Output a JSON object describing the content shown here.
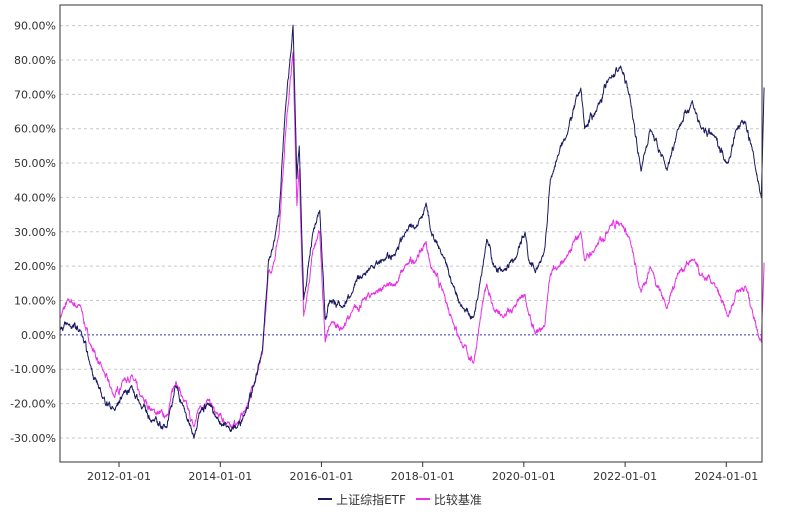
{
  "chart_data": {
    "type": "line",
    "title": "",
    "xlabel": "",
    "ylabel": "",
    "x_ticks": [
      "2012-01-01",
      "2014-01-01",
      "2016-01-01",
      "2018-01-01",
      "2020-01-01",
      "2022-01-01",
      "2024-01-01"
    ],
    "x_range": [
      "2010-11-01",
      "2024-09-15"
    ],
    "y_ticks": [
      "-30.00%",
      "-20.00%",
      "-10.00%",
      "0.00%",
      "10.00%",
      "20.00%",
      "30.00%",
      "40.00%",
      "50.00%",
      "60.00%",
      "70.00%",
      "80.00%",
      "90.00%"
    ],
    "ylim": [
      -37,
      96
    ],
    "grid": true,
    "zero_line": true,
    "legend_position": "bottom-center",
    "series": [
      {
        "name": "上证综指ETF",
        "color": "#1a1a5e",
        "points": [
          [
            "2010-11-01",
            2
          ],
          [
            "2011-01-01",
            3
          ],
          [
            "2011-04-01",
            1
          ],
          [
            "2011-06-01",
            -8
          ],
          [
            "2011-09-01",
            -18
          ],
          [
            "2011-12-01",
            -22
          ],
          [
            "2012-02-01",
            -17
          ],
          [
            "2012-04-01",
            -15
          ],
          [
            "2012-06-01",
            -20
          ],
          [
            "2012-09-01",
            -25
          ],
          [
            "2012-12-01",
            -27
          ],
          [
            "2013-01-01",
            -22
          ],
          [
            "2013-02-15",
            -15
          ],
          [
            "2013-04-01",
            -20
          ],
          [
            "2013-06-25",
            -30
          ],
          [
            "2013-08-01",
            -22
          ],
          [
            "2013-10-01",
            -20
          ],
          [
            "2013-12-01",
            -24
          ],
          [
            "2014-03-01",
            -27
          ],
          [
            "2014-05-01",
            -27
          ],
          [
            "2014-07-01",
            -22
          ],
          [
            "2014-09-01",
            -15
          ],
          [
            "2014-11-01",
            -5
          ],
          [
            "2014-12-15",
            22
          ],
          [
            "2015-01-15",
            25
          ],
          [
            "2015-03-01",
            35
          ],
          [
            "2015-04-15",
            65
          ],
          [
            "2015-06-10",
            90
          ],
          [
            "2015-07-08",
            45
          ],
          [
            "2015-07-25",
            55
          ],
          [
            "2015-08-26",
            10
          ],
          [
            "2015-09-15",
            15
          ],
          [
            "2015-11-01",
            30
          ],
          [
            "2015-12-20",
            36
          ],
          [
            "2016-01-28",
            5
          ],
          [
            "2016-03-01",
            10
          ],
          [
            "2016-06-01",
            8
          ],
          [
            "2016-08-01",
            12
          ],
          [
            "2016-11-01",
            18
          ],
          [
            "2017-01-01",
            20
          ],
          [
            "2017-04-01",
            22
          ],
          [
            "2017-06-01",
            23
          ],
          [
            "2017-09-01",
            30
          ],
          [
            "2017-11-15",
            32
          ],
          [
            "2018-01-25",
            38
          ],
          [
            "2018-03-01",
            30
          ],
          [
            "2018-06-01",
            22
          ],
          [
            "2018-08-01",
            15
          ],
          [
            "2018-10-15",
            8
          ],
          [
            "2019-01-03",
            5
          ],
          [
            "2019-02-15",
            15
          ],
          [
            "2019-04-08",
            28
          ],
          [
            "2019-06-01",
            20
          ],
          [
            "2019-08-01",
            18
          ],
          [
            "2019-11-01",
            22
          ],
          [
            "2020-01-10",
            30
          ],
          [
            "2020-02-03",
            22
          ],
          [
            "2020-03-23",
            18
          ],
          [
            "2020-06-01",
            25
          ],
          [
            "2020-07-10",
            45
          ],
          [
            "2020-09-01",
            52
          ],
          [
            "2020-11-01",
            58
          ],
          [
            "2021-02-15",
            72
          ],
          [
            "2021-03-15",
            60
          ],
          [
            "2021-06-01",
            65
          ],
          [
            "2021-09-15",
            75
          ],
          [
            "2021-12-01",
            78
          ],
          [
            "2022-02-01",
            70
          ],
          [
            "2022-04-26",
            48
          ],
          [
            "2022-07-01",
            60
          ],
          [
            "2022-10-31",
            48
          ],
          [
            "2023-01-15",
            60
          ],
          [
            "2023-05-01",
            68
          ],
          [
            "2023-07-01",
            60
          ],
          [
            "2023-10-01",
            58
          ],
          [
            "2024-01-15",
            50
          ],
          [
            "2024-03-15",
            60
          ],
          [
            "2024-05-20",
            62
          ],
          [
            "2024-07-01",
            55
          ],
          [
            "2024-09-10",
            40
          ],
          [
            "2024-09-30",
            72
          ]
        ]
      },
      {
        "name": "比较基准",
        "color": "#e632e6",
        "points": [
          [
            "2010-11-01",
            5
          ],
          [
            "2011-01-01",
            10
          ],
          [
            "2011-04-01",
            8
          ],
          [
            "2011-06-01",
            -2
          ],
          [
            "2011-09-01",
            -10
          ],
          [
            "2011-12-01",
            -18
          ],
          [
            "2012-02-01",
            -13
          ],
          [
            "2012-04-01",
            -12
          ],
          [
            "2012-06-01",
            -18
          ],
          [
            "2012-09-01",
            -22
          ],
          [
            "2012-12-01",
            -24
          ],
          [
            "2013-01-01",
            -20
          ],
          [
            "2013-02-15",
            -13
          ],
          [
            "2013-04-01",
            -18
          ],
          [
            "2013-06-25",
            -27
          ],
          [
            "2013-08-01",
            -21
          ],
          [
            "2013-10-01",
            -19
          ],
          [
            "2013-12-01",
            -23
          ],
          [
            "2014-03-01",
            -26
          ],
          [
            "2014-05-01",
            -26
          ],
          [
            "2014-07-01",
            -22
          ],
          [
            "2014-09-01",
            -14
          ],
          [
            "2014-11-01",
            -6
          ],
          [
            "2014-12-15",
            18
          ],
          [
            "2015-01-15",
            20
          ],
          [
            "2015-03-01",
            30
          ],
          [
            "2015-04-15",
            58
          ],
          [
            "2015-06-10",
            82
          ],
          [
            "2015-07-08",
            38
          ],
          [
            "2015-07-25",
            48
          ],
          [
            "2015-08-26",
            5
          ],
          [
            "2015-09-15",
            10
          ],
          [
            "2015-11-01",
            25
          ],
          [
            "2015-12-20",
            30
          ],
          [
            "2016-01-28",
            -2
          ],
          [
            "2016-03-01",
            3
          ],
          [
            "2016-06-01",
            2
          ],
          [
            "2016-08-01",
            6
          ],
          [
            "2016-11-01",
            10
          ],
          [
            "2017-01-01",
            12
          ],
          [
            "2017-04-01",
            14
          ],
          [
            "2017-06-01",
            14
          ],
          [
            "2017-09-01",
            20
          ],
          [
            "2017-11-15",
            22
          ],
          [
            "2018-01-25",
            27
          ],
          [
            "2018-03-01",
            20
          ],
          [
            "2018-06-01",
            12
          ],
          [
            "2018-08-01",
            5
          ],
          [
            "2018-10-15",
            -3
          ],
          [
            "2019-01-03",
            -8
          ],
          [
            "2019-02-15",
            3
          ],
          [
            "2019-04-08",
            15
          ],
          [
            "2019-06-01",
            7
          ],
          [
            "2019-08-01",
            5
          ],
          [
            "2019-11-01",
            8
          ],
          [
            "2020-01-10",
            12
          ],
          [
            "2020-02-03",
            6
          ],
          [
            "2020-03-23",
            0
          ],
          [
            "2020-06-01",
            3
          ],
          [
            "2020-07-10",
            18
          ],
          [
            "2020-09-01",
            20
          ],
          [
            "2020-11-01",
            22
          ],
          [
            "2021-02-15",
            30
          ],
          [
            "2021-03-15",
            22
          ],
          [
            "2021-06-01",
            25
          ],
          [
            "2021-09-15",
            32
          ],
          [
            "2021-12-01",
            33
          ],
          [
            "2022-02-01",
            28
          ],
          [
            "2022-04-26",
            12
          ],
          [
            "2022-07-01",
            20
          ],
          [
            "2022-10-31",
            8
          ],
          [
            "2023-01-15",
            18
          ],
          [
            "2023-05-01",
            22
          ],
          [
            "2023-07-01",
            17
          ],
          [
            "2023-10-01",
            15
          ],
          [
            "2024-01-15",
            5
          ],
          [
            "2024-03-15",
            13
          ],
          [
            "2024-05-20",
            14
          ],
          [
            "2024-07-01",
            8
          ],
          [
            "2024-09-10",
            -2
          ],
          [
            "2024-09-30",
            21
          ]
        ]
      }
    ]
  }
}
